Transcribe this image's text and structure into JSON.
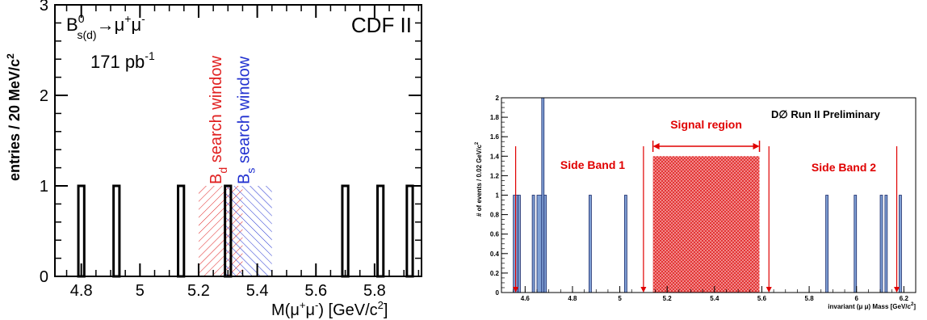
{
  "chart_data": [
    {
      "type": "bar",
      "experiment": "CDF II",
      "title_main": "B",
      "title_sup": "0",
      "title_sub": "s(d)",
      "title_rest": "→μ",
      "title_rest_sup1": "+",
      "title_rest2": "μ",
      "title_rest_sup2": "-",
      "lumi": "171 pb",
      "lumi_sup": "-1",
      "ylabel": "entries / 20 MeV/c",
      "ylabel_sup": "2",
      "xlabel": "M(μ",
      "xlabel_sup1": "+",
      "xlabel_mid": "μ",
      "xlabel_sup2": "-",
      "xlabel_end": ")  [GeV/c",
      "xlabel_sup3": "2",
      "xlabel_close": "]",
      "xlim": [
        4.71,
        5.96
      ],
      "ylim": [
        0,
        3
      ],
      "x_ticks": [
        4.8,
        5,
        5.2,
        5.4,
        5.6,
        5.8
      ],
      "x_tick_labels": [
        "4.8",
        "5",
        "5.2",
        "5.4",
        "5.6",
        "5.8"
      ],
      "y_ticks": [
        0,
        1,
        2,
        3
      ],
      "y_tick_labels": [
        "0",
        "1",
        "2",
        "3"
      ],
      "bin_width": 0.02,
      "event_bins": [
        4.79,
        4.91,
        5.13,
        5.29,
        5.69,
        5.81,
        5.91
      ],
      "event_values": [
        1,
        1,
        1,
        1,
        1,
        1,
        1
      ],
      "windows": [
        {
          "name": "B",
          "sub": "d",
          "text": " search window",
          "range": [
            5.2,
            5.35
          ],
          "height": 1,
          "color": "#e02020"
        },
        {
          "name": "B",
          "sub": "s",
          "text": " search window",
          "range": [
            5.29,
            5.45
          ],
          "height": 1,
          "color": "#2030d0"
        }
      ]
    },
    {
      "type": "bar",
      "experiment": "D∅  Run II Preliminary",
      "ylabel": "# of events / 0.02 GeV/c",
      "ylabel_sup": "2",
      "xlabel": "invariant (μ μ) Mass [GeV/c",
      "xlabel_sup": "2",
      "xlabel_close": "]",
      "xlim": [
        4.5,
        6.25
      ],
      "ylim": [
        0,
        2
      ],
      "x_ticks": [
        4.6,
        4.8,
        5,
        5.2,
        5.4,
        5.6,
        5.8,
        6,
        6.2
      ],
      "x_tick_labels": [
        "4.6",
        "4.8",
        "5",
        "5.2",
        "5.4",
        "5.6",
        "5.8",
        "6",
        "6.2"
      ],
      "y_ticks": [
        0,
        0.2,
        0.4,
        0.6,
        0.8,
        1,
        1.2,
        1.4,
        1.6,
        1.8,
        2
      ],
      "y_tick_labels": [
        "0",
        "0.2",
        "0.4",
        "0.6",
        "0.8",
        "1",
        "1.2",
        "1.4",
        "1.6",
        "1.8",
        "2"
      ],
      "bar_color": "#7f9fd4",
      "bars": [
        {
          "x0": 4.55,
          "x1": 4.57,
          "y": 1
        },
        {
          "x0": 4.57,
          "x1": 4.58,
          "y": 1
        },
        {
          "x0": 4.63,
          "x1": 4.64,
          "y": 1
        },
        {
          "x0": 4.65,
          "x1": 4.67,
          "y": 1
        },
        {
          "x0": 4.67,
          "x1": 4.68,
          "y": 2
        },
        {
          "x0": 4.68,
          "x1": 4.69,
          "y": 1
        },
        {
          "x0": 4.87,
          "x1": 4.88,
          "y": 1
        },
        {
          "x0": 5.02,
          "x1": 5.03,
          "y": 1
        },
        {
          "x0": 5.87,
          "x1": 5.88,
          "y": 1
        },
        {
          "x0": 5.99,
          "x1": 6.0,
          "y": 1
        },
        {
          "x0": 6.1,
          "x1": 6.11,
          "y": 1
        },
        {
          "x0": 6.12,
          "x1": 6.13,
          "y": 1
        },
        {
          "x0": 6.18,
          "x1": 6.19,
          "y": 1
        }
      ],
      "signal_region": {
        "label": "Signal region",
        "range": [
          5.14,
          5.59
        ],
        "height": 1.4,
        "color": "#e03030"
      },
      "side_bands": [
        {
          "label": "Side Band 1",
          "range": [
            4.56,
            5.1
          ]
        },
        {
          "label": "Side Band 2",
          "range": [
            5.63,
            6.17
          ]
        }
      ],
      "annotation_color": "#e00000"
    }
  ]
}
